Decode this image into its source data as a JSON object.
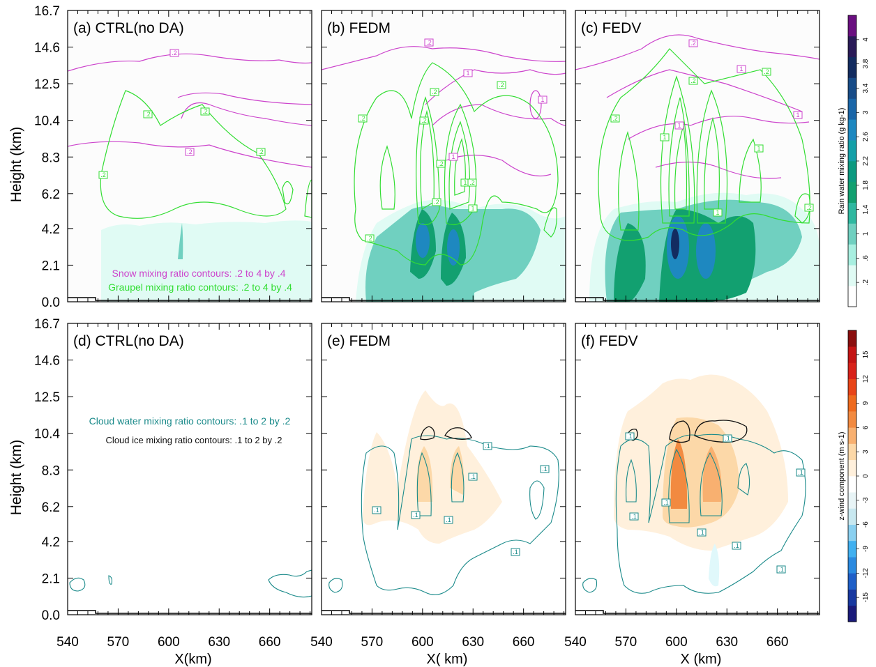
{
  "figure": {
    "y_axis_label": "Height (km)",
    "x_axis_labels": [
      "X(km)",
      "X( km)",
      "X (km)"
    ],
    "y_ticks": [
      "0.0",
      "2.1",
      "4.2",
      "6.2",
      "8.3",
      "10.4",
      "12.5",
      "14.6",
      "16.7"
    ],
    "y_tick_values": [
      0.0,
      2.1,
      4.2,
      6.2,
      8.3,
      10.4,
      12.5,
      14.6,
      16.7
    ],
    "x_ticks": [
      "540",
      "570",
      "600",
      "630",
      "660"
    ],
    "x_tick_values": [
      540,
      570,
      600,
      630,
      660
    ],
    "x_range": [
      540,
      685
    ],
    "y_range": [
      0,
      16.7
    ]
  },
  "panels": [
    {
      "title": "(a) CTRL(no DA)",
      "row": 0,
      "col": 0
    },
    {
      "title": "(b) FEDM",
      "row": 0,
      "col": 1
    },
    {
      "title": "(c) FEDV",
      "row": 0,
      "col": 2
    },
    {
      "title": "(d) CTRL(no DA)",
      "row": 1,
      "col": 0
    },
    {
      "title": "(e) FEDM",
      "row": 1,
      "col": 1
    },
    {
      "title": "(f) FEDV",
      "row": 1,
      "col": 2
    }
  ],
  "annotations": {
    "snow": "Snow mixing ratio contours: .2 to 4 by .4",
    "graupel": "Graupel mixing ratio contours: .2 to 4 by .4",
    "cloud_water": "Cloud water mixing ratio contours: .1 to 2 by .2",
    "cloud_ice": "Cloud ice mixing ratio contours: .1 to 2 by .2"
  },
  "colors": {
    "snow": "#cc44cc",
    "graupel": "#33dd33",
    "cloud_water": "#1a8a8a",
    "cloud_ice": "#111111",
    "terrain": "#000000"
  },
  "colorbars": [
    {
      "label": "Rain water mixing ratio  (g kg-1)",
      "ticks": [
        ".2",
        ".6",
        "1",
        "1.4",
        "1.8",
        "2.2",
        "2.6",
        "3",
        "3.4",
        "3.8",
        "4"
      ],
      "colors": [
        "#ffffff",
        "#e0fbf4",
        "#a8efe0",
        "#70d0c0",
        "#2fb8a0",
        "#12a070",
        "#0c9a80",
        "#14a0a8",
        "#1e88c0",
        "#1a66a8",
        "#184c88",
        "#132c60",
        "#2a1a58",
        "#6a0f80"
      ]
    },
    {
      "label": "z-wind component  (m s-1)",
      "ticks": [
        "-15",
        "-12",
        "-9",
        "-6",
        "-3",
        "0",
        "3",
        "6",
        "9",
        "12",
        "15"
      ],
      "colors": [
        "#1a1a7a",
        "#1838a0",
        "#1f5fc8",
        "#2a8ae0",
        "#40b0f0",
        "#8ad0f0",
        "#c8e8f0",
        "#e8f4f6",
        "#ffffff",
        "#fff0dc",
        "#fcd8a8",
        "#f8b070",
        "#f28a40",
        "#ee6a1e",
        "#e84418",
        "#d8221a",
        "#c41414",
        "#8a0e0e"
      ]
    }
  ],
  "chart_data": [
    {
      "type": "contour",
      "panel": "(a) CTRL(no DA)",
      "fields": [
        "rain water (shaded)",
        "snow (contours)",
        "graupel (contours)"
      ],
      "contour_labels": [
        ".2",
        ".2",
        ".2",
        ".2",
        ".2",
        ".2",
        ".2"
      ],
      "xlim": [
        540,
        685
      ],
      "ylim": [
        0,
        16.7
      ]
    },
    {
      "type": "contour",
      "panel": "(b) FEDM",
      "fields": [
        "rain water (shaded)",
        "snow (contours)",
        "graupel (contours)"
      ],
      "contour_labels": [
        ".2",
        "1",
        ".2",
        "1",
        ".2",
        ".2",
        ".2",
        "1",
        ".2",
        "1",
        ".2",
        ".2",
        "1",
        ".2"
      ],
      "xlim": [
        540,
        685
      ],
      "ylim": [
        0,
        16.7
      ]
    },
    {
      "type": "contour",
      "panel": "(c) FEDV",
      "fields": [
        "rain water (shaded)",
        "snow (contours)",
        "graupel (contours)"
      ],
      "contour_labels": [
        ".2",
        "1",
        ".2",
        ".2",
        "1",
        ".2",
        "1",
        "1",
        "1",
        "1",
        ".2"
      ],
      "xlim": [
        540,
        685
      ],
      "ylim": [
        0,
        16.7
      ]
    },
    {
      "type": "contour",
      "panel": "(d) CTRL(no DA)",
      "fields": [
        "vertical wind (shaded)",
        "cloud water (contours)",
        "cloud ice (contours)"
      ],
      "contour_labels": [],
      "xlim": [
        540,
        685
      ],
      "ylim": [
        0,
        16.7
      ]
    },
    {
      "type": "contour",
      "panel": "(e) FEDM",
      "fields": [
        "vertical wind (shaded)",
        "cloud water (contours)",
        "cloud ice (contours)"
      ],
      "contour_labels": [
        ".1",
        ".1",
        ".1",
        ".1",
        ".1",
        ".1",
        ".1"
      ],
      "xlim": [
        540,
        685
      ],
      "ylim": [
        0,
        16.7
      ]
    },
    {
      "type": "contour",
      "panel": "(f) FEDV",
      "fields": [
        "vertical wind (shaded)",
        "cloud water (contours)",
        "cloud ice (contours)"
      ],
      "contour_labels": [
        ".1",
        ".1",
        ".1",
        ".1",
        ".1",
        ".1",
        ".1",
        ".1"
      ],
      "xlim": [
        540,
        685
      ],
      "ylim": [
        0,
        16.7
      ]
    }
  ]
}
